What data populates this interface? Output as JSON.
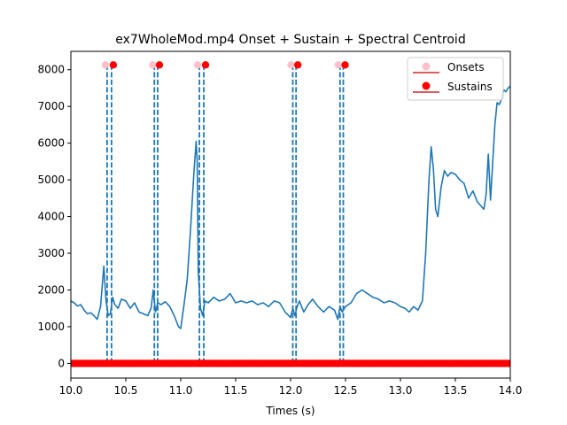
{
  "chart_data": {
    "type": "line",
    "title": "ex7WholeMod.mp4 Onset + Sustain + Spectral Centroid",
    "xlabel": "Times (s)",
    "ylabel": "",
    "xlim": [
      10.0,
      14.0
    ],
    "ylim": [
      -400,
      8500
    ],
    "xticks": [
      "10.0",
      "10.5",
      "11.0",
      "11.5",
      "12.0",
      "12.5",
      "13.0",
      "13.5",
      "14.0"
    ],
    "yticks": [
      "0",
      "1000",
      "2000",
      "3000",
      "4000",
      "5000",
      "6000",
      "7000",
      "8000"
    ],
    "grid": false,
    "legend_position": "top-right",
    "legend": [
      "Onsets",
      "Sustains"
    ],
    "colors": {
      "centroid": "#1f77b4",
      "onset": "#ffc0cb",
      "sustain": "#ff0000",
      "baseline": "#ff0000",
      "markers_line": "#1f77b4"
    },
    "onsets": [
      10.33,
      10.76,
      11.17,
      12.02,
      12.45
    ],
    "sustains": [
      10.37,
      10.79,
      11.21,
      12.05,
      12.48
    ],
    "marker_level": 8130,
    "series": [
      {
        "x": [
          10.0,
          10.03,
          10.06,
          10.09,
          10.12,
          10.15,
          10.18,
          10.21,
          10.24,
          10.27,
          10.3,
          10.32,
          10.34,
          10.36,
          10.38,
          10.4,
          10.43,
          10.46,
          10.5,
          10.54,
          10.58,
          10.62,
          10.66,
          10.7,
          10.73,
          10.75,
          10.77,
          10.79,
          10.82,
          10.86,
          10.9,
          10.94,
          10.98,
          11.0,
          11.03,
          11.06,
          11.09,
          11.12,
          11.14,
          11.15,
          11.16,
          11.18,
          11.2,
          11.22,
          11.25,
          11.3,
          11.35,
          11.4,
          11.45,
          11.5,
          11.55,
          11.6,
          11.65,
          11.7,
          11.75,
          11.8,
          11.85,
          11.9,
          11.95,
          12.0,
          12.02,
          12.04,
          12.06,
          12.08,
          12.12,
          12.16,
          12.2,
          12.25,
          12.3,
          12.35,
          12.4,
          12.43,
          12.45,
          12.47,
          12.5,
          12.55,
          12.6,
          12.65,
          12.7,
          12.75,
          12.8,
          12.85,
          12.9,
          12.95,
          13.0,
          13.04,
          13.08,
          13.12,
          13.16,
          13.2,
          13.23,
          13.26,
          13.28,
          13.3,
          13.32,
          13.34,
          13.37,
          13.4,
          13.43,
          13.46,
          13.5,
          13.54,
          13.58,
          13.62,
          13.66,
          13.7,
          13.73,
          13.76,
          13.78,
          13.8,
          13.82,
          13.84,
          13.86,
          13.88,
          13.9,
          13.92,
          13.94,
          13.96,
          13.98,
          14.0
        ],
        "y": [
          1700,
          1650,
          1560,
          1600,
          1450,
          1350,
          1380,
          1300,
          1200,
          1550,
          2650,
          1700,
          1300,
          1350,
          1800,
          1600,
          1500,
          1750,
          1700,
          1500,
          1650,
          1400,
          1350,
          1300,
          1500,
          2000,
          1400,
          1650,
          1600,
          1680,
          1550,
          1300,
          1000,
          950,
          1600,
          2300,
          3700,
          5200,
          6050,
          5500,
          2500,
          1500,
          1300,
          1700,
          1650,
          1800,
          1700,
          1750,
          1900,
          1650,
          1700,
          1650,
          1700,
          1600,
          1650,
          1550,
          1700,
          1650,
          1400,
          1250,
          1500,
          1300,
          1550,
          1700,
          1400,
          1600,
          1750,
          1550,
          1400,
          1550,
          1450,
          1200,
          1550,
          1400,
          1550,
          1650,
          1900,
          2000,
          1900,
          1800,
          1750,
          1650,
          1700,
          1650,
          1550,
          1500,
          1400,
          1550,
          1450,
          1700,
          3000,
          5000,
          5900,
          5300,
          4200,
          4000,
          4800,
          5250,
          5100,
          5200,
          5150,
          5000,
          4900,
          4500,
          4700,
          4400,
          4300,
          4200,
          4600,
          5700,
          4450,
          5500,
          6500,
          7100,
          7050,
          7200,
          7450,
          7400,
          7500,
          7550
        ]
      }
    ]
  }
}
